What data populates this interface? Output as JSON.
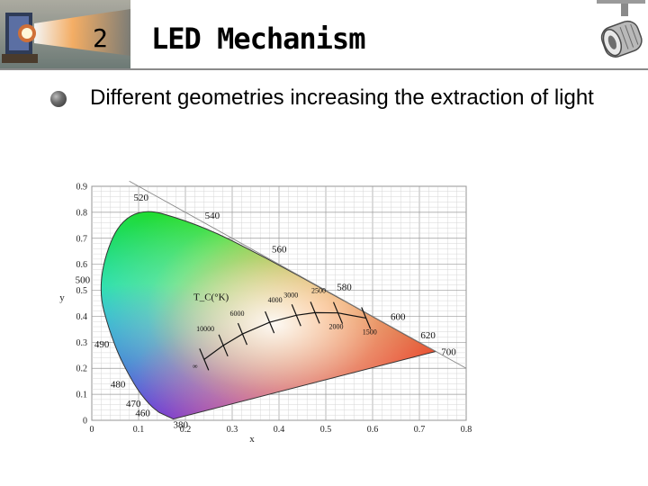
{
  "slide": {
    "number": "2",
    "title": "LED Mechanism",
    "bullet": "Different geometries increasing the extraction of light"
  },
  "images": {
    "left": "led-beam-photo",
    "right": "track-spotlight-photo"
  },
  "chart_data": {
    "type": "scatter",
    "title": "",
    "xlabel": "x",
    "ylabel": "y",
    "xlim": [
      0,
      0.8
    ],
    "ylim": [
      0,
      0.9
    ],
    "x_ticks": [
      "0",
      "0.1",
      "0.2",
      "0.3",
      "0.4",
      "0.5",
      "0.6",
      "0.7",
      "0.8"
    ],
    "y_ticks": [
      "0",
      "0.1",
      "0.2",
      "0.3",
      "0.4",
      "0.5",
      "0.6",
      "0.7",
      "0.8",
      "0.9"
    ],
    "grid": true,
    "spectral_locus": [
      {
        "label": "380",
        "x": 0.1741,
        "y": 0.005
      },
      {
        "label": "460",
        "x": 0.144,
        "y": 0.03
      },
      {
        "label": "470",
        "x": 0.124,
        "y": 0.058
      },
      {
        "label": "480",
        "x": 0.091,
        "y": 0.133
      },
      {
        "label": "490",
        "x": 0.045,
        "y": 0.295
      },
      {
        "label": "500",
        "x": 0.008,
        "y": 0.538
      },
      {
        "label": "520",
        "x": 0.074,
        "y": 0.834
      },
      {
        "label": "540",
        "x": 0.23,
        "y": 0.754
      },
      {
        "label": "560",
        "x": 0.373,
        "y": 0.624
      },
      {
        "label": "580",
        "x": 0.512,
        "y": 0.487
      },
      {
        "label": "600",
        "x": 0.627,
        "y": 0.372
      },
      {
        "label": "620",
        "x": 0.691,
        "y": 0.308
      },
      {
        "label": "700",
        "x": 0.735,
        "y": 0.265
      }
    ],
    "planckian_locus_label": "T_C(°K)",
    "planckian_locus": [
      {
        "label": "∞",
        "x": 0.24,
        "y": 0.234
      },
      {
        "label": "10000",
        "x": 0.281,
        "y": 0.288
      },
      {
        "label": "6000",
        "x": 0.322,
        "y": 0.332
      },
      {
        "label": "4000",
        "x": 0.38,
        "y": 0.377
      },
      {
        "label": "3000",
        "x": 0.437,
        "y": 0.404
      },
      {
        "label": "2500",
        "x": 0.477,
        "y": 0.414
      },
      {
        "label": "2000",
        "x": 0.526,
        "y": 0.413
      },
      {
        "label": "1500",
        "x": 0.586,
        "y": 0.393
      }
    ],
    "colors": {
      "green": "#2fd21b",
      "red": "#ff2a10",
      "blue": "#3a1fff",
      "cyan": "#2be6d8",
      "yellow": "#ffe02a",
      "white": "#f4f4f4"
    }
  }
}
